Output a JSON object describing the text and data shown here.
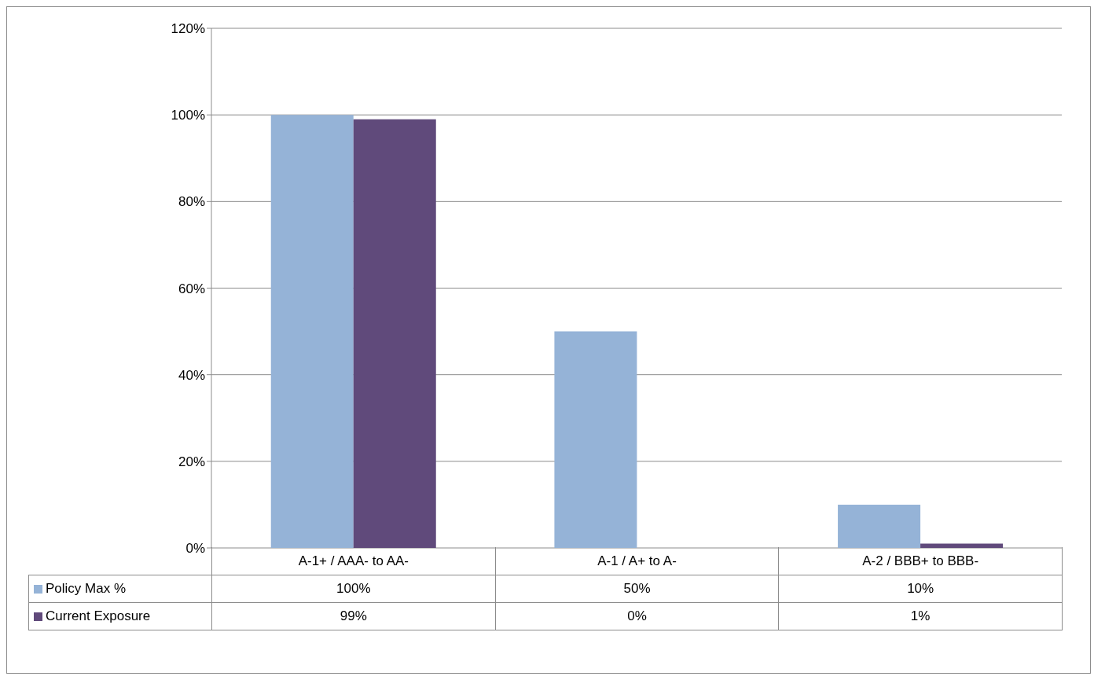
{
  "chart_data": {
    "type": "bar",
    "categories": [
      "A-1+ / AAA- to AA-",
      "A-1 / A+ to A-",
      "A-2 / BBB+ to BBB-"
    ],
    "series": [
      {
        "name": "Policy Max %",
        "color": "#95b3d7",
        "values": [
          100,
          50,
          10
        ],
        "value_labels": [
          "100%",
          "50%",
          "10%"
        ]
      },
      {
        "name": "Current Exposure",
        "color": "#604a7b",
        "values": [
          99,
          0,
          1
        ],
        "value_labels": [
          "99%",
          "0%",
          "1%"
        ]
      }
    ],
    "ylim": [
      0,
      120
    ],
    "yticks": [
      {
        "value": 0,
        "label": "0%"
      },
      {
        "value": 20,
        "label": "20%"
      },
      {
        "value": 40,
        "label": "40%"
      },
      {
        "value": 60,
        "label": "60%"
      },
      {
        "value": 80,
        "label": "80%"
      },
      {
        "value": 100,
        "label": "100%"
      },
      {
        "value": 120,
        "label": "120%"
      }
    ],
    "grid": "y",
    "legend": "bottom"
  }
}
